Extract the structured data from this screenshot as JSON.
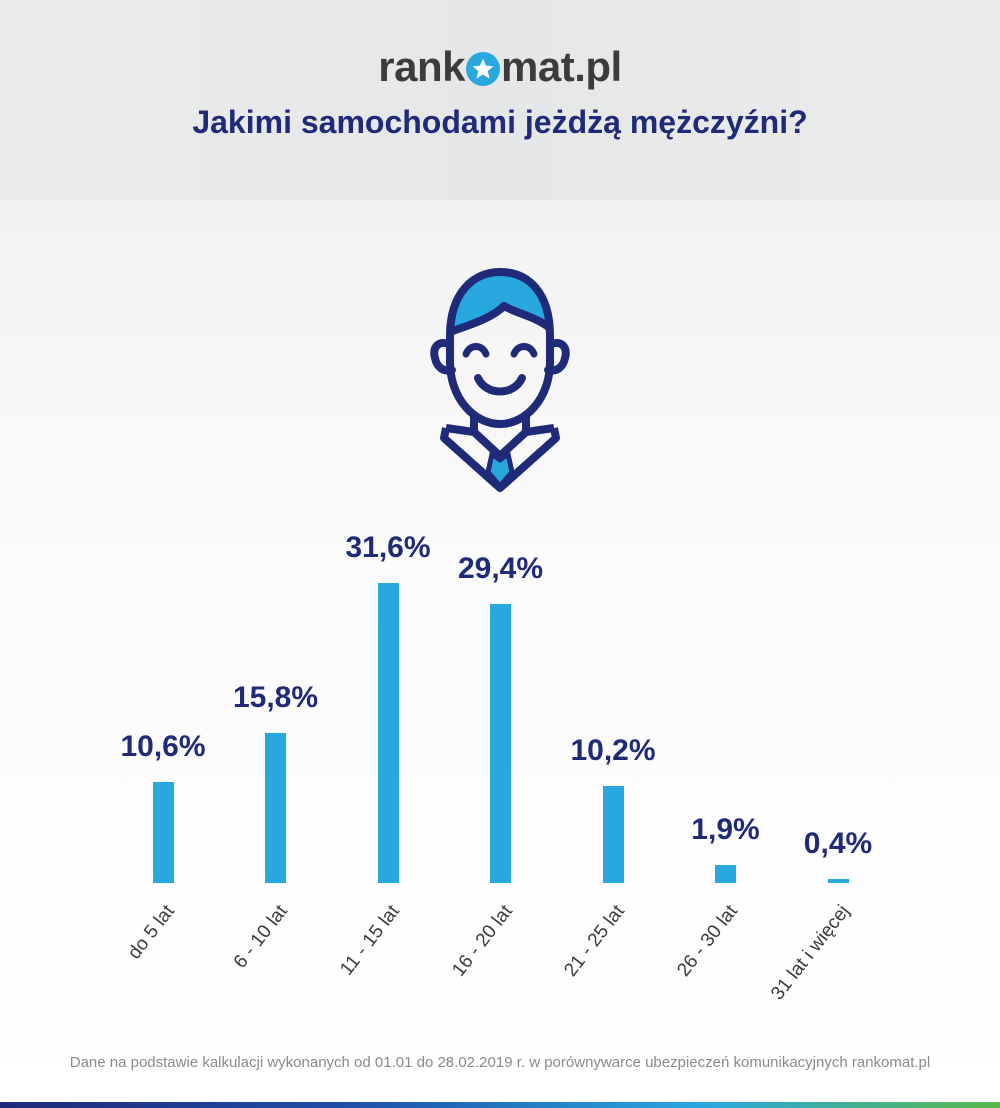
{
  "logo": {
    "prefix": "rank",
    "suffix": "mat.pl"
  },
  "title": "Jakimi samochodami jeżdżą mężczyźni?",
  "icon": "man-avatar-icon",
  "colors": {
    "bar": "#29a8e0",
    "title": "#1f2a78",
    "label": "#1f2a78"
  },
  "chart_data": {
    "type": "bar",
    "title": "Jakimi samochodami jeżdżą mężczyźni?",
    "categories": [
      "do 5 lat",
      "6 - 10 lat",
      "11 - 15 lat",
      "16 - 20 lat",
      "21 - 25 lat",
      "26 - 30 lat",
      "31 lat i więcej"
    ],
    "values": [
      10.6,
      15.8,
      31.6,
      29.4,
      10.2,
      1.9,
      0.4
    ],
    "value_labels": [
      "10,6%",
      "15,8%",
      "31,6%",
      "29,4%",
      "10,2%",
      "1,9%",
      "0,4%"
    ],
    "xlabel": "",
    "ylabel": "",
    "grid": false,
    "legend": "none"
  },
  "footnote": "Dane na podstawie kalkulacji wykonanych od 01.01 do 28.02.2019 r. w porównywarce ubezpieczeń komunikacyjnych rankomat.pl"
}
